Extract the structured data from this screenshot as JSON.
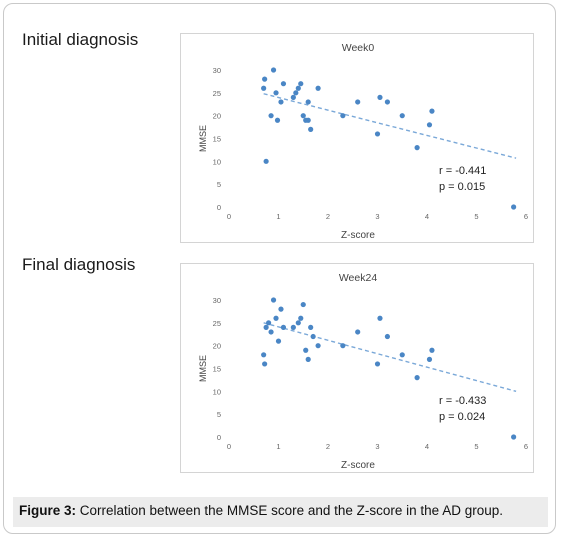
{
  "sections": [
    {
      "title": "Initial diagnosis"
    },
    {
      "title": "Final diagnosis"
    }
  ],
  "caption": {
    "label": "Figure 3:",
    "text": " Correlation between the MMSE score and the Z-score in the AD group."
  },
  "chart_data": [
    {
      "type": "scatter",
      "title": "Week0",
      "xlabel": "Z-score",
      "ylabel": "MMSE",
      "xlim": [
        0,
        6
      ],
      "ylim": [
        0,
        30
      ],
      "xticks": [
        "0",
        "1",
        "2",
        "3",
        "4",
        "5",
        "6"
      ],
      "yticks": [
        "0",
        "5",
        "10",
        "15",
        "20",
        "25",
        "30"
      ],
      "grid": false,
      "trendline": {
        "style": "dashed",
        "x": [
          0.7,
          5.8
        ],
        "y": [
          24.8,
          10.7
        ]
      },
      "annotation": {
        "r": "r = -0.441",
        "p": "p = 0.015"
      },
      "color": "#4a86c5",
      "points": [
        [
          0.7,
          26
        ],
        [
          0.72,
          28
        ],
        [
          0.75,
          10
        ],
        [
          0.85,
          20
        ],
        [
          0.9,
          30
        ],
        [
          0.95,
          25
        ],
        [
          0.98,
          19
        ],
        [
          1.05,
          23
        ],
        [
          1.1,
          27
        ],
        [
          1.3,
          24
        ],
        [
          1.35,
          25
        ],
        [
          1.4,
          26
        ],
        [
          1.45,
          27
        ],
        [
          1.5,
          20
        ],
        [
          1.55,
          19
        ],
        [
          1.6,
          19
        ],
        [
          1.6,
          23
        ],
        [
          1.65,
          17
        ],
        [
          1.8,
          26
        ],
        [
          2.3,
          20
        ],
        [
          2.6,
          23
        ],
        [
          3.0,
          16
        ],
        [
          3.05,
          24
        ],
        [
          3.2,
          23
        ],
        [
          3.5,
          20
        ],
        [
          3.8,
          13
        ],
        [
          4.05,
          18
        ],
        [
          4.1,
          21
        ],
        [
          5.75,
          0
        ]
      ]
    },
    {
      "type": "scatter",
      "title": "Week24",
      "xlabel": "Z-score",
      "ylabel": "MMSE",
      "xlim": [
        0,
        6
      ],
      "ylim": [
        0,
        30
      ],
      "xticks": [
        "0",
        "1",
        "2",
        "3",
        "4",
        "5",
        "6"
      ],
      "yticks": [
        "0",
        "5",
        "10",
        "15",
        "20",
        "25",
        "30"
      ],
      "grid": false,
      "trendline": {
        "style": "dashed",
        "x": [
          0.7,
          5.8
        ],
        "y": [
          25.0,
          10.0
        ]
      },
      "annotation": {
        "r": "r = -0.433",
        "p": "p = 0.024"
      },
      "color": "#4a86c5",
      "points": [
        [
          0.7,
          18
        ],
        [
          0.72,
          16
        ],
        [
          0.75,
          24
        ],
        [
          0.8,
          25
        ],
        [
          0.85,
          23
        ],
        [
          0.9,
          30
        ],
        [
          0.95,
          26
        ],
        [
          1.0,
          21
        ],
        [
          1.05,
          28
        ],
        [
          1.1,
          24
        ],
        [
          1.3,
          24
        ],
        [
          1.4,
          25
        ],
        [
          1.45,
          26
        ],
        [
          1.5,
          29
        ],
        [
          1.55,
          19
        ],
        [
          1.6,
          17
        ],
        [
          1.65,
          24
        ],
        [
          1.7,
          22
        ],
        [
          1.8,
          20
        ],
        [
          2.3,
          20
        ],
        [
          2.6,
          23
        ],
        [
          3.0,
          16
        ],
        [
          3.05,
          26
        ],
        [
          3.2,
          22
        ],
        [
          3.5,
          18
        ],
        [
          3.8,
          13
        ],
        [
          4.05,
          17
        ],
        [
          4.1,
          19
        ],
        [
          5.75,
          0
        ]
      ]
    }
  ]
}
